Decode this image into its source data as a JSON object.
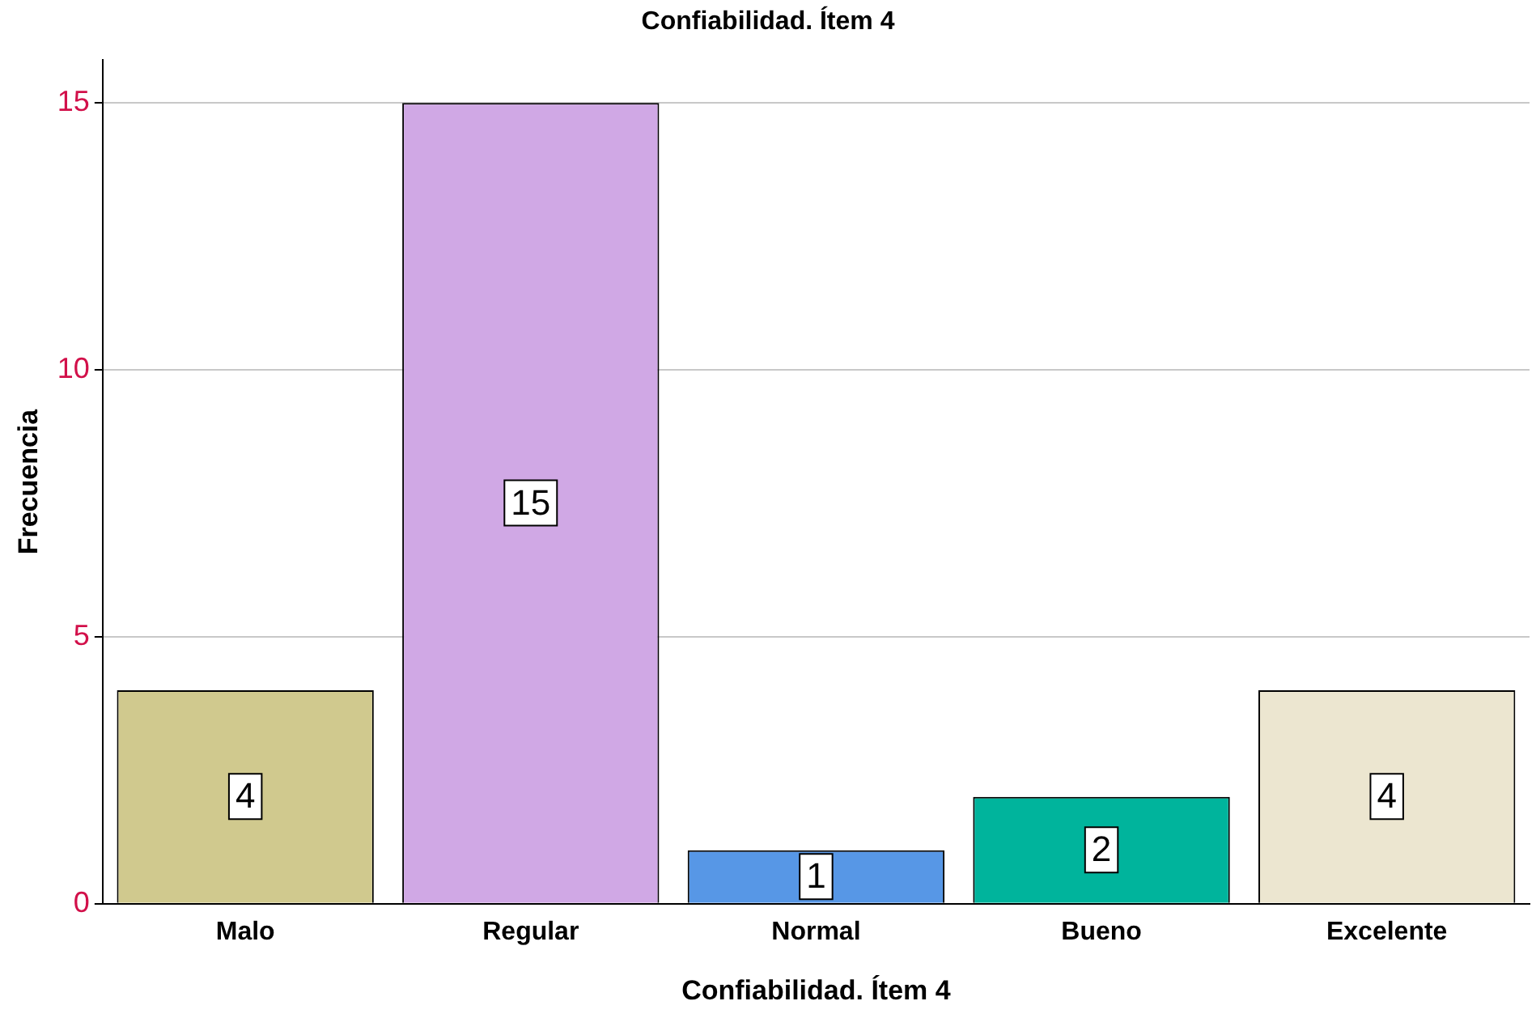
{
  "chart_data": {
    "type": "bar",
    "title": "Confiabilidad. Ítem 4",
    "xlabel": "Confiabilidad. Ítem 4",
    "ylabel": "Frecuencia",
    "categories": [
      "Malo",
      "Regular",
      "Normal",
      "Bueno",
      "Excelente"
    ],
    "values": [
      4,
      15,
      1,
      2,
      4
    ],
    "colors": [
      "#d0c98e",
      "#d0a8e5",
      "#5797e6",
      "#00b49c",
      "#ece6d0"
    ],
    "ylim": [
      0,
      15.8
    ],
    "yticks": [
      0,
      5,
      10,
      15
    ],
    "grid": "y",
    "legend": false,
    "data_labels": true
  }
}
